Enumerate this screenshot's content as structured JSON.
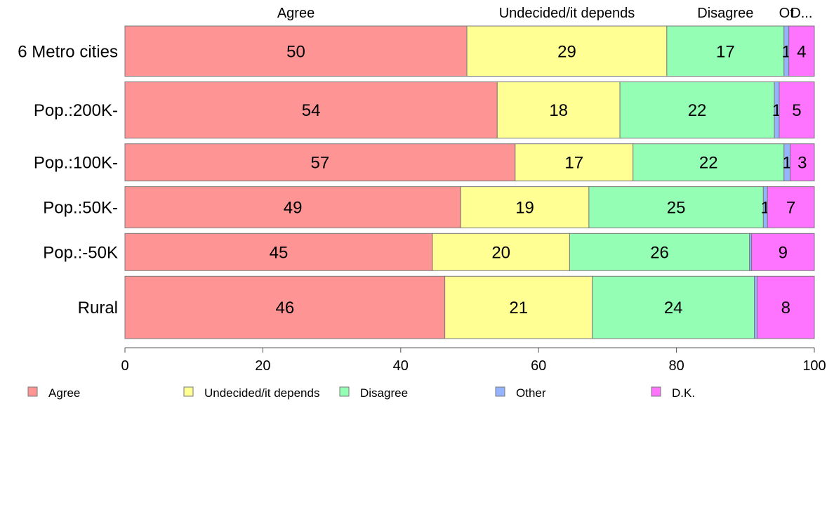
{
  "chart_data": {
    "type": "bar",
    "orientation": "horizontal",
    "stacked": true,
    "categories": [
      "6 Metro cities",
      "Pop.:200K-",
      "Pop.:100K-",
      "Pop.:50K-",
      "Pop.:-50K",
      "Rural"
    ],
    "series": [
      {
        "name": "Agree",
        "color": "#FF9494",
        "values": [
          49.6,
          54.0,
          56.6,
          48.7,
          44.6,
          46.4
        ],
        "labels": [
          "50",
          "54",
          "57",
          "49",
          "45",
          "46"
        ]
      },
      {
        "name": "Undecided/it depends",
        "color": "#FFFF94",
        "values": [
          29.0,
          17.8,
          17.1,
          18.6,
          19.9,
          21.4
        ],
        "labels": [
          "29",
          "18",
          "17",
          "19",
          "20",
          "21"
        ]
      },
      {
        "name": "Disagree",
        "color": "#94FFB4",
        "values": [
          17.0,
          22.4,
          21.9,
          25.3,
          26.1,
          23.5
        ],
        "labels": [
          "17",
          "22",
          "22",
          "25",
          "26",
          "24"
        ]
      },
      {
        "name": "Other",
        "color": "#94B4FF",
        "values": [
          0.7,
          0.7,
          0.9,
          0.6,
          0.3,
          0.4
        ],
        "labels": [
          "1",
          "1",
          "1",
          "1",
          "",
          ""
        ]
      },
      {
        "name": "D.K.",
        "color": "#FF74FF",
        "values": [
          3.7,
          5.1,
          3.5,
          6.8,
          9.1,
          8.3
        ],
        "labels": [
          "4",
          "5",
          "3",
          "7",
          "9",
          "8"
        ]
      }
    ],
    "bar_weights": [
      1.0,
      1.12,
      0.74,
      0.82,
      0.74,
      1.24
    ],
    "column_headers": [
      "Agree",
      "Undecided/it depends",
      "Disagree",
      "Ot",
      "D..."
    ],
    "xlim": [
      0,
      100
    ],
    "xticks": [
      0,
      20,
      40,
      60,
      80,
      100
    ],
    "grid": false,
    "legend_position": "bottom"
  }
}
